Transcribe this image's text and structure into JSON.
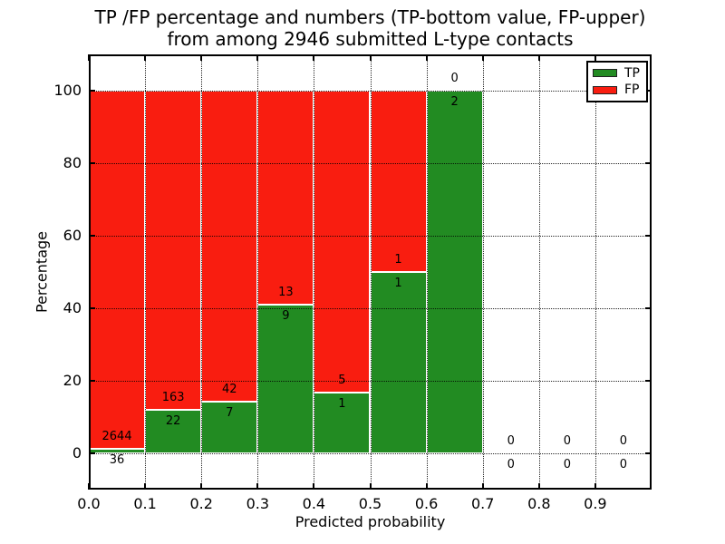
{
  "title": {
    "line1": "TP /FP percentage and numbers (TP-bottom value, FP-upper)",
    "line2": "from among 2946 submitted L-type contacts"
  },
  "axes": {
    "xlabel": "Predicted probability",
    "ylabel": "Percentage",
    "xtick_labels": [
      "0.0",
      "0.1",
      "0.2",
      "0.3",
      "0.4",
      "0.5",
      "0.6",
      "0.7",
      "0.8",
      "0.9"
    ],
    "ytick_values": [
      0,
      20,
      40,
      60,
      80,
      100
    ],
    "xlim": [
      0.0,
      1.0
    ],
    "ylim": [
      -10,
      110
    ],
    "grid_style": "dotted"
  },
  "legend": {
    "position": "upper right",
    "items": [
      {
        "label": "TP",
        "color": "#228b22"
      },
      {
        "label": "FP",
        "color": "#f91d10"
      }
    ]
  },
  "chart_data": {
    "type": "bar",
    "stacking": "percentage",
    "title": "TP /FP percentage and numbers (TP-bottom value, FP-upper) from among 2946 submitted L-type contacts",
    "xlabel": "Predicted probability",
    "ylabel": "Percentage",
    "total_contacts": 2946,
    "categories": [
      "0.0-0.1",
      "0.1-0.2",
      "0.2-0.3",
      "0.3-0.4",
      "0.4-0.5",
      "0.5-0.6",
      "0.6-0.7",
      "0.7-0.8",
      "0.8-0.9",
      "0.9-1.0"
    ],
    "bin_starts": [
      0.0,
      0.1,
      0.2,
      0.3,
      0.4,
      0.5,
      0.6,
      0.7,
      0.8,
      0.9
    ],
    "series": [
      {
        "name": "TP",
        "color": "#228b22",
        "counts": [
          36,
          22,
          7,
          9,
          1,
          1,
          2,
          0,
          0,
          0
        ]
      },
      {
        "name": "FP",
        "color": "#f91d10",
        "counts": [
          2644,
          163,
          42,
          13,
          5,
          1,
          0,
          0,
          0,
          0
        ]
      }
    ],
    "tp_percent": [
      1.3,
      11.9,
      14.3,
      40.9,
      16.7,
      50.0,
      100.0,
      0.0,
      0.0,
      0.0
    ],
    "bars_reach_percent": 100,
    "ylim": [
      -10,
      110
    ],
    "grid": true,
    "legend_position": "upper right"
  }
}
